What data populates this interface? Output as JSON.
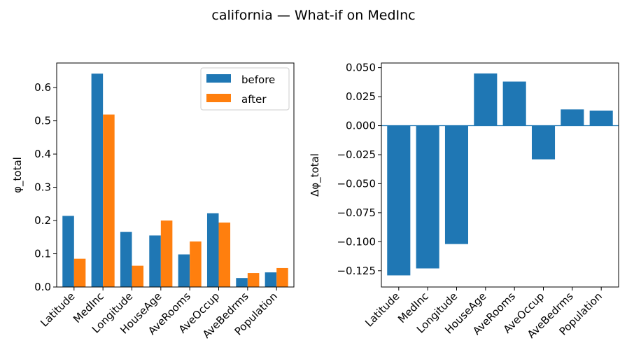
{
  "figure": {
    "suptitle": "california — What-if on MedInc"
  },
  "colors": {
    "before": "#1f77b4",
    "after": "#ff7f0e",
    "delta": "#1f77b4",
    "zero_line": "#1f77b4"
  },
  "chart_data": [
    {
      "type": "bar",
      "title": "",
      "xlabel": "",
      "ylabel": "φ_total",
      "categories": [
        "Latitude",
        "MedInc",
        "Longitude",
        "HouseAge",
        "AveRooms",
        "AveOccup",
        "AveBedrms",
        "Population"
      ],
      "series": [
        {
          "name": "before",
          "values": [
            0.214,
            0.642,
            0.166,
            0.155,
            0.098,
            0.222,
            0.027,
            0.044
          ]
        },
        {
          "name": "after",
          "values": [
            0.085,
            0.519,
            0.064,
            0.2,
            0.137,
            0.194,
            0.042,
            0.057
          ]
        }
      ],
      "ylim": [
        0,
        0.674
      ],
      "yticks": [
        "0.0",
        "0.1",
        "0.2",
        "0.3",
        "0.4",
        "0.5",
        "0.6"
      ],
      "ytick_values": [
        0.0,
        0.1,
        0.2,
        0.3,
        0.4,
        0.5,
        0.6
      ],
      "legend": "top-right",
      "grid": false
    },
    {
      "type": "bar",
      "title": "",
      "xlabel": "",
      "ylabel": "Δφ_total",
      "categories": [
        "Latitude",
        "MedInc",
        "Longitude",
        "HouseAge",
        "AveRooms",
        "AveOccup",
        "AveBedrms",
        "Population"
      ],
      "values": [
        -0.129,
        -0.123,
        -0.102,
        0.045,
        0.038,
        -0.029,
        0.014,
        0.013
      ],
      "ylim": [
        -0.139,
        0.054
      ],
      "yticks": [
        "−0.125",
        "−0.100",
        "−0.075",
        "−0.050",
        "−0.025",
        "0.000",
        "0.025",
        "0.050"
      ],
      "ytick_values": [
        -0.125,
        -0.1,
        -0.075,
        -0.05,
        -0.025,
        0.0,
        0.025,
        0.05
      ],
      "zero_line": true,
      "grid": false
    }
  ]
}
